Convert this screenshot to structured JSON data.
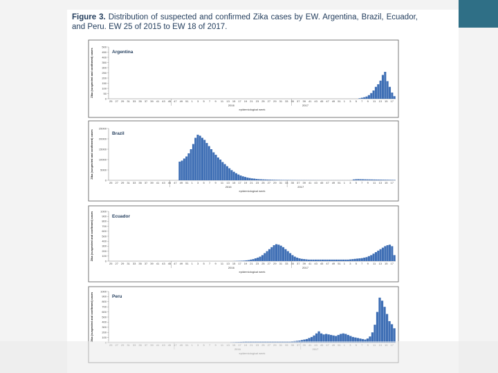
{
  "caption": {
    "label": "Figure 3.",
    "text": "Distribution of suspected and confirmed Zika cases by EW. Argentina, Brazil, Ecuador, and Peru. EW 25 of 2015 to EW 18 of 2017."
  },
  "colors": {
    "bar": "#3f6fb5",
    "accent": "#2f6f86",
    "frame": "#555555",
    "grid": "#d9d9d9"
  },
  "chart_data": [
    {
      "type": "bar",
      "title": "Argentina",
      "ylabel": "Zika (suspected and confirmed) cases",
      "xlabel": "epidemiological week",
      "ylim": [
        0,
        500
      ],
      "yticks": [
        0,
        50,
        100,
        150,
        200,
        250,
        300,
        350,
        400,
        450,
        500
      ],
      "ytick_labels": [
        "0",
        "50",
        "100",
        "150",
        "200",
        "250",
        "300",
        "350",
        "400",
        "450",
        "500"
      ],
      "week_labels": [
        "25",
        "27",
        "29",
        "31",
        "33",
        "35",
        "37",
        "39",
        "41",
        "43",
        "45",
        "47",
        "49",
        "51",
        "1",
        "3",
        "5",
        "7",
        "9",
        "11",
        "13",
        "15",
        "17",
        "19",
        "21",
        "23",
        "25",
        "27",
        "29",
        "31",
        "33",
        "35",
        "37",
        "39",
        "41",
        "43",
        "45",
        "47",
        "49",
        "51",
        "1",
        "3",
        "5",
        "7",
        "9",
        "11",
        "13",
        "15",
        "17"
      ],
      "year_labels": [
        "2016",
        "2017"
      ],
      "values": [
        0,
        0,
        0,
        0,
        0,
        0,
        0,
        0,
        0,
        0,
        0,
        0,
        0,
        0,
        0,
        0,
        0,
        0,
        0,
        0,
        0,
        0,
        0,
        0,
        0,
        0,
        0,
        0,
        0,
        0,
        0,
        0,
        0,
        0,
        0,
        0,
        0,
        0,
        0,
        0,
        0,
        0,
        0,
        0,
        0,
        0,
        0,
        0,
        0,
        0,
        0,
        0,
        0,
        0,
        0,
        0,
        0,
        0,
        0,
        0,
        0,
        0,
        0,
        0,
        0,
        0,
        0,
        0,
        0,
        0,
        0,
        0,
        0,
        0,
        0,
        0,
        0,
        0,
        0,
        0,
        0,
        0,
        0,
        0,
        0,
        0,
        0,
        0,
        0,
        0,
        0,
        0,
        0,
        0,
        0,
        0,
        0,
        0,
        0,
        0,
        0,
        0,
        0,
        0,
        0,
        0,
        0,
        0,
        5,
        10,
        15,
        22,
        35,
        55,
        80,
        115,
        140,
        175,
        230,
        260,
        170,
        115,
        60,
        25
      ]
    },
    {
      "type": "bar",
      "title": "Brazil",
      "ylabel": "Zika (suspected and confirmed) cases",
      "xlabel": "epidemiological week",
      "ylim": [
        0,
        25000
      ],
      "yticks": [
        0,
        5000,
        10000,
        15000,
        20000,
        25000
      ],
      "ytick_labels": [
        "0",
        "5000",
        "10000",
        "15000",
        "20000",
        "25000"
      ],
      "week_labels": [
        "25",
        "27",
        "29",
        "31",
        "33",
        "35",
        "37",
        "39",
        "41",
        "43",
        "45",
        "47",
        "49",
        "51",
        "1",
        "3",
        "5",
        "7",
        "9",
        "11",
        "13",
        "15",
        "17",
        "19",
        "21",
        "23",
        "25",
        "27",
        "29",
        "31",
        "33",
        "35",
        "37",
        "39",
        "41",
        "43",
        "45",
        "47",
        "49",
        "51",
        "1",
        "3",
        "5",
        "7",
        "9",
        "11",
        "13",
        "15",
        "17"
      ],
      "year_labels": [
        "2016",
        "2017"
      ],
      "values": [
        0,
        0,
        0,
        0,
        0,
        0,
        0,
        0,
        0,
        0,
        0,
        0,
        0,
        0,
        0,
        0,
        0,
        0,
        0,
        0,
        0,
        0,
        0,
        0,
        0,
        0,
        0,
        0,
        0,
        0,
        0,
        9000,
        9500,
        10500,
        11500,
        13000,
        15000,
        17500,
        20500,
        22000,
        21500,
        20500,
        19500,
        18000,
        16500,
        15000,
        13500,
        12300,
        11000,
        10000,
        8800,
        7800,
        6800,
        5800,
        4900,
        4100,
        3400,
        2800,
        2300,
        1900,
        1600,
        1300,
        1100,
        900,
        800,
        650,
        550,
        480,
        420,
        380,
        340,
        300,
        270,
        240,
        220,
        200,
        180,
        160,
        150,
        140,
        130,
        120,
        110,
        100,
        90,
        85,
        80,
        75,
        70,
        65,
        60,
        55,
        50,
        45,
        40,
        38,
        36,
        34,
        32,
        30,
        30,
        30,
        30,
        30,
        30,
        30,
        30,
        30,
        400,
        500,
        550,
        500,
        480,
        450,
        420,
        400,
        380,
        360,
        340,
        320,
        300,
        280,
        260,
        240,
        220,
        200,
        180
      ]
    },
    {
      "type": "bar",
      "title": "Ecuador",
      "ylabel": "Zika (suspected and confirmed) cases",
      "xlabel": "epidemiological week",
      "ylim": [
        0,
        1000
      ],
      "yticks": [
        0,
        100,
        200,
        300,
        400,
        500,
        600,
        700,
        800,
        900,
        1000
      ],
      "ytick_labels": [
        "0",
        "100",
        "200",
        "300",
        "400",
        "500",
        "600",
        "700",
        "800",
        "900",
        "1000"
      ],
      "week_labels": [
        "25",
        "27",
        "29",
        "31",
        "33",
        "35",
        "37",
        "39",
        "41",
        "43",
        "45",
        "47",
        "49",
        "51",
        "1",
        "3",
        "5",
        "7",
        "9",
        "11",
        "13",
        "15",
        "17",
        "19",
        "21",
        "23",
        "25",
        "27",
        "29",
        "31",
        "33",
        "35",
        "37",
        "39",
        "41",
        "43",
        "45",
        "47",
        "49",
        "51",
        "1",
        "3",
        "5",
        "7",
        "9",
        "11",
        "13",
        "15",
        "17"
      ],
      "year_labels": [
        "2016",
        "2017"
      ],
      "values": [
        0,
        0,
        0,
        0,
        0,
        0,
        0,
        0,
        0,
        0,
        0,
        0,
        0,
        0,
        0,
        0,
        0,
        0,
        0,
        0,
        0,
        0,
        0,
        0,
        0,
        0,
        0,
        0,
        0,
        0,
        0,
        0,
        0,
        0,
        0,
        0,
        0,
        0,
        0,
        0,
        0,
        0,
        0,
        0,
        0,
        0,
        0,
        0,
        0,
        0,
        0,
        0,
        0,
        0,
        2,
        4,
        6,
        8,
        10,
        15,
        20,
        30,
        40,
        55,
        70,
        90,
        120,
        160,
        200,
        240,
        280,
        320,
        340,
        330,
        310,
        280,
        240,
        200,
        160,
        120,
        90,
        70,
        55,
        45,
        40,
        35,
        30,
        30,
        30,
        30,
        30,
        30,
        30,
        30,
        30,
        30,
        30,
        30,
        30,
        30,
        30,
        30,
        30,
        30,
        35,
        40,
        45,
        50,
        55,
        60,
        70,
        80,
        100,
        120,
        150,
        180,
        210,
        240,
        270,
        300,
        320,
        330,
        300,
        120
      ]
    },
    {
      "type": "bar",
      "title": "Peru",
      "ylabel": "Zika (suspected and confirmed) cases",
      "xlabel": "epidemiological week",
      "ylim": [
        0,
        1000
      ],
      "yticks": [
        0,
        100,
        200,
        300,
        400,
        500,
        600,
        700,
        800,
        900,
        1000
      ],
      "ytick_labels": [
        "0",
        "100",
        "200",
        "300",
        "400",
        "500",
        "600",
        "700",
        "800",
        "900",
        "1000"
      ],
      "week_labels": [
        "25",
        "27",
        "29",
        "31",
        "33",
        "35",
        "37",
        "39",
        "41",
        "43",
        "45",
        "47",
        "49",
        "51",
        "1",
        "3",
        "5",
        "7",
        "9",
        "11",
        "13",
        "15",
        "17",
        "19",
        "21",
        "23",
        "25",
        "27",
        "29",
        "31",
        "33",
        "35",
        "37",
        "39",
        "41",
        "43",
        "45",
        "47",
        "49",
        "51",
        "1",
        "3",
        "5",
        "7",
        "9",
        "11",
        "13",
        "15",
        "17"
      ],
      "year_labels": [
        "2016",
        "2017"
      ],
      "values": [
        0,
        0,
        0,
        0,
        0,
        0,
        0,
        0,
        0,
        0,
        0,
        0,
        0,
        0,
        0,
        0,
        0,
        0,
        0,
        0,
        0,
        0,
        0,
        0,
        0,
        0,
        0,
        0,
        0,
        0,
        0,
        0,
        0,
        0,
        0,
        0,
        0,
        0,
        0,
        0,
        0,
        0,
        0,
        0,
        0,
        0,
        0,
        0,
        0,
        0,
        5,
        8,
        10,
        12,
        15,
        18,
        20,
        20,
        20,
        20,
        20,
        20,
        20,
        20,
        20,
        20,
        20,
        20,
        20,
        20,
        20,
        20,
        20,
        20,
        20,
        25,
        30,
        35,
        40,
        50,
        60,
        70,
        90,
        110,
        140,
        180,
        220,
        180,
        160,
        170,
        160,
        150,
        140,
        130,
        150,
        170,
        180,
        170,
        150,
        130,
        110,
        100,
        90,
        80,
        70,
        60,
        80,
        120,
        200,
        350,
        600,
        880,
        820,
        700,
        560,
        420,
        360,
        280
      ]
    }
  ]
}
